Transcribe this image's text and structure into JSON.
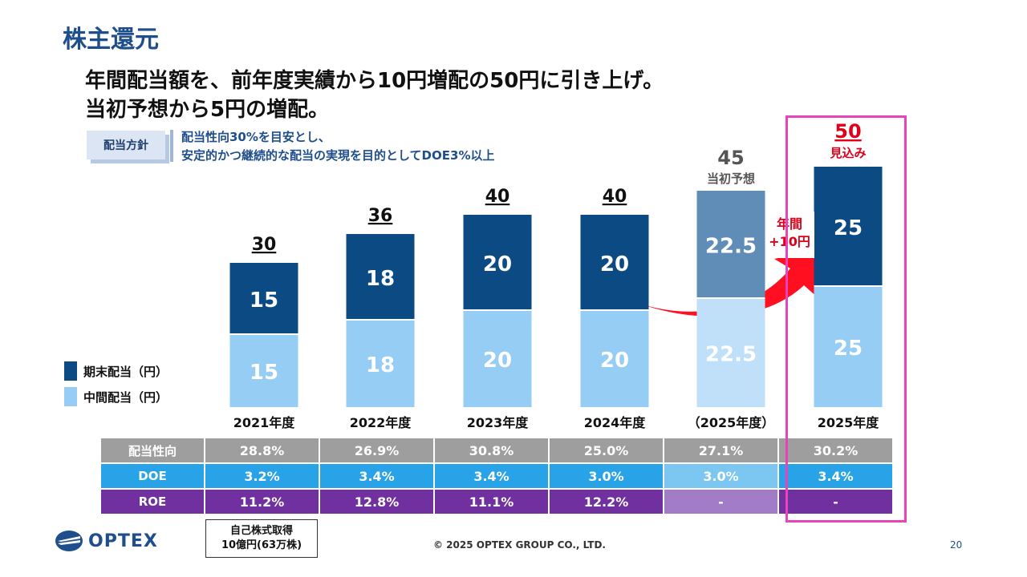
{
  "title": "株主還元",
  "headline": [
    "年間配当額を、前年度実績から10円増配の50円に引き上げ。",
    "当初予想から5円の増配。"
  ],
  "policy": {
    "label": "配当方針",
    "lines": [
      "配当性向30%を目安とし、",
      "安定的かつ継続的な配当の実現を目的としてDOE3%以上"
    ]
  },
  "legend": [
    {
      "label": "期末配当（円）",
      "color": "#0b4a82"
    },
    {
      "label": "中間配当（円）",
      "color": "#96cdf4"
    }
  ],
  "chart_data": {
    "type": "bar",
    "stacked": true,
    "categories": [
      "2021年度",
      "2022年度",
      "2023年度",
      "2024年度",
      "（2025年度）",
      "2025年度"
    ],
    "series": [
      {
        "name": "中間配当（円）",
        "values": [
          15,
          18,
          20,
          20,
          22.5,
          25
        ]
      },
      {
        "name": "期末配当（円）",
        "values": [
          15,
          18,
          20,
          20,
          22.5,
          25
        ]
      }
    ],
    "totals": [
      "30",
      "36",
      "40",
      "40",
      "45",
      "50"
    ],
    "total_notes": [
      "",
      "",
      "",
      "",
      "当初予想",
      "見込み"
    ],
    "colors": {
      "interim": "#96cdf4",
      "final": "#0b4a82",
      "interim_forecast": "#bfe0f8",
      "final_forecast": "#5f8db7",
      "highlight_total": "#e0001a",
      "forecast_total": "#555555"
    },
    "annotation": {
      "lines": [
        "年間",
        "+10円"
      ],
      "color": "#e0001a"
    },
    "ylim": [
      0,
      50
    ]
  },
  "table": {
    "rows": [
      {
        "label": "配当性向",
        "values": [
          "28.8%",
          "26.9%",
          "30.8%",
          "25.0%",
          "27.1%",
          "30.2%"
        ]
      },
      {
        "label": "DOE",
        "values": [
          "3.2%",
          "3.4%",
          "3.4%",
          "3.0%",
          "3.0%",
          "3.4%"
        ]
      },
      {
        "label": "ROE",
        "values": [
          "11.2%",
          "12.8%",
          "11.1%",
          "12.2%",
          "-",
          "-"
        ]
      }
    ]
  },
  "buyback": [
    "自己株式取得",
    "10億円(63万株)"
  ],
  "logo_text": "OPTEX",
  "copyright": "© 2025 OPTEX GROUP CO., LTD.",
  "page_number": "20"
}
